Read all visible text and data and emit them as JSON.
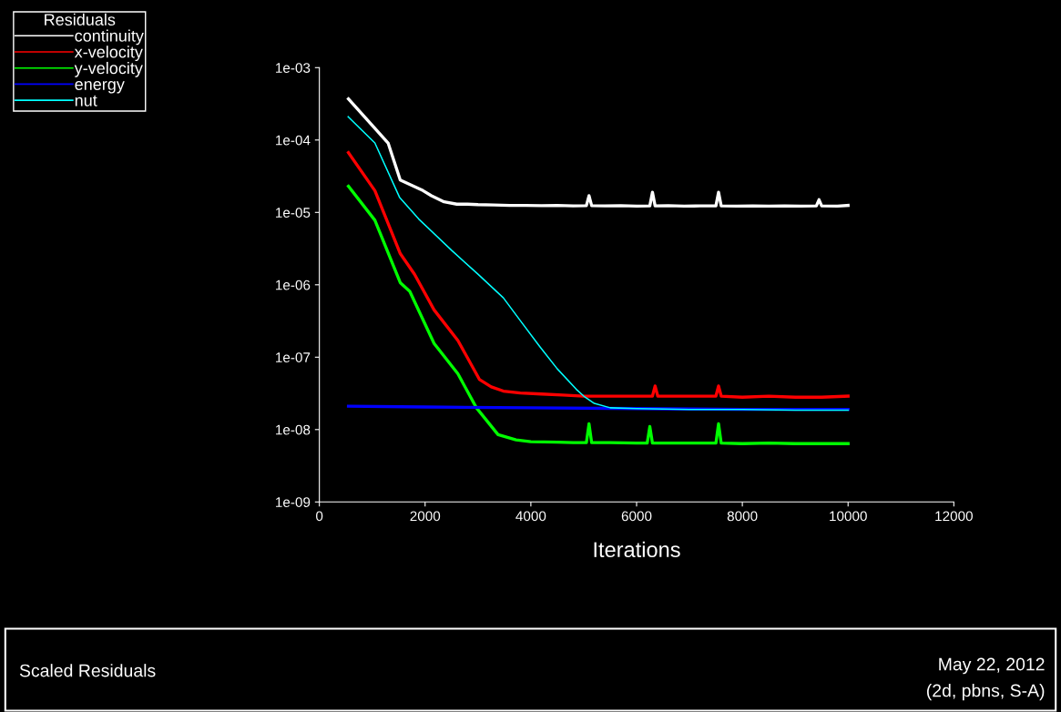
{
  "chart_data": {
    "type": "line",
    "xlabel": "Iterations",
    "legend_title": "Residuals",
    "legend": "top left",
    "grid": false,
    "log": "y",
    "marker": "none",
    "line_style": "solid",
    "xlim": [
      0,
      12000
    ],
    "xticks": [
      0,
      2000,
      4000,
      6000,
      8000,
      10000,
      12000
    ],
    "ylim": [
      1e-09,
      0.001
    ],
    "yticks": [
      {
        "value": 1e-09,
        "label": "1e-09"
      },
      {
        "value": 1e-08,
        "label": "1e-08"
      },
      {
        "value": 1e-07,
        "label": "1e-07"
      },
      {
        "value": 1e-06,
        "label": "1e-06"
      },
      {
        "value": 1e-05,
        "label": "1e-05"
      },
      {
        "value": 0.0001,
        "label": "1e-04"
      },
      {
        "value": 0.001,
        "label": "1e-03"
      }
    ],
    "annotations": [
      "Scaled Residuals",
      "May 22, 2012",
      "(2d, pbns, S-A)"
    ],
    "series": [
      {
        "name": "continuity",
        "color": "#ffffff",
        "x": [
          550,
          1300,
          1530,
          1960,
          2120,
          2360,
          2600,
          2800,
          3000,
          3300,
          3600,
          3900,
          4200,
          4500,
          4800,
          5050,
          5100,
          5150,
          5400,
          5700,
          6000,
          6250,
          6300,
          6350,
          6600,
          6900,
          7200,
          7500,
          7550,
          7600,
          7900,
          8200,
          8500,
          8800,
          9100,
          9400,
          9450,
          9500,
          9800,
          10000
        ],
        "values": [
          0.00037,
          9.1e-05,
          2.8e-05,
          2e-05,
          1.7e-05,
          1.4e-05,
          1.3e-05,
          1.3e-05,
          1.28e-05,
          1.27e-05,
          1.25e-05,
          1.25e-05,
          1.24e-05,
          1.25e-05,
          1.23e-05,
          1.24e-05,
          1.7e-05,
          1.24e-05,
          1.23e-05,
          1.24e-05,
          1.22e-05,
          1.23e-05,
          1.9e-05,
          1.23e-05,
          1.24e-05,
          1.22e-05,
          1.23e-05,
          1.23e-05,
          1.9e-05,
          1.23e-05,
          1.22e-05,
          1.23e-05,
          1.22e-05,
          1.23e-05,
          1.22e-05,
          1.23e-05,
          1.5e-05,
          1.23e-05,
          1.22e-05,
          1.25e-05
        ]
      },
      {
        "name": "x-velocity",
        "color": "#ff0000",
        "x": [
          550,
          1050,
          1530,
          1800,
          2170,
          2620,
          3030,
          3250,
          3480,
          3800,
          4200,
          4600,
          5000,
          5500,
          6000,
          6300,
          6350,
          6400,
          7000,
          7500,
          7550,
          7600,
          8000,
          8500,
          9000,
          9500,
          10000
        ],
        "values": [
          6.7e-05,
          2e-05,
          2.7e-06,
          1.4e-06,
          4.5e-07,
          1.7e-07,
          4.9e-08,
          3.9e-08,
          3.4e-08,
          3.2e-08,
          3.1e-08,
          3e-08,
          2.9e-08,
          2.9e-08,
          2.9e-08,
          2.9e-08,
          4e-08,
          2.9e-08,
          2.9e-08,
          2.9e-08,
          4e-08,
          2.9e-08,
          2.8e-08,
          2.9e-08,
          2.8e-08,
          2.8e-08,
          2.9e-08
        ]
      },
      {
        "name": "y-velocity",
        "color": "#00ff00",
        "x": [
          550,
          1050,
          1530,
          1710,
          2170,
          2620,
          2970,
          3380,
          3720,
          4000,
          4500,
          4800,
          5050,
          5100,
          5150,
          5500,
          6000,
          6200,
          6250,
          6300,
          6500,
          7000,
          7500,
          7550,
          7600,
          8000,
          8500,
          9000,
          9500,
          10000
        ],
        "values": [
          2.3e-05,
          7.8e-06,
          1.07e-06,
          8.1e-07,
          1.55e-07,
          5.9e-08,
          2e-08,
          8.5e-09,
          7.2e-09,
          6.8e-09,
          6.7e-09,
          6.6e-09,
          6.6e-09,
          1.2e-08,
          6.6e-09,
          6.6e-09,
          6.5e-09,
          6.5e-09,
          1.1e-08,
          6.5e-09,
          6.5e-09,
          6.5e-09,
          6.5e-09,
          1.2e-08,
          6.5e-09,
          6.4e-09,
          6.5e-09,
          6.4e-09,
          6.4e-09,
          6.4e-09
        ]
      },
      {
        "name": "energy",
        "color": "#0000ff",
        "x": [
          550,
          2000,
          4000,
          6000,
          8000,
          10000
        ],
        "values": [
          2.1e-08,
          2.05e-08,
          2e-08,
          1.95e-08,
          1.9e-08,
          1.9e-08
        ]
      },
      {
        "name": "nut",
        "color": "#00ffff",
        "x": [
          545,
          1050,
          1520,
          1880,
          2500,
          3000,
          3480,
          3800,
          4170,
          4500,
          4860,
          5000,
          5200,
          5500,
          6000,
          7000,
          8000,
          9000,
          10000
        ],
        "values": [
          0.00021,
          9.1e-05,
          1.6e-05,
          8.1e-06,
          3e-06,
          1.4e-06,
          6.6e-07,
          3.2e-07,
          1.4e-07,
          6.9e-08,
          3.6e-08,
          2.9e-08,
          2.3e-08,
          2e-08,
          1.95e-08,
          1.9e-08,
          1.9e-08,
          1.85e-08,
          1.85e-08
        ]
      }
    ]
  }
}
